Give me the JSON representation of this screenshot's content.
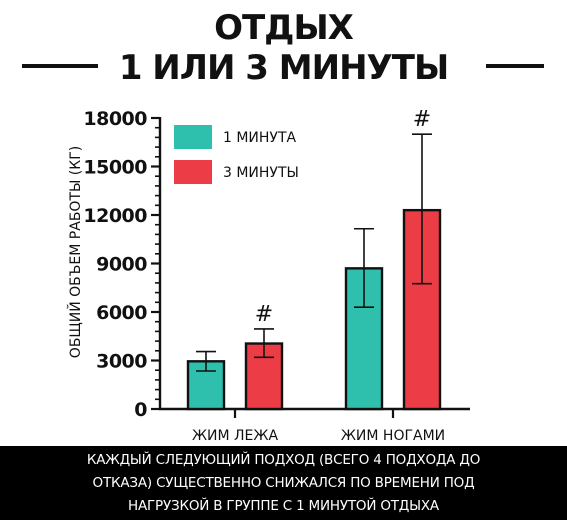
{
  "title_line1": "ОТДЫХ",
  "title_line2": "1 ИЛИ 3 МИНУТЫ",
  "caption_lines": [
    "КАЖДЫЙ СЛЕДУЮЩИЙ ПОДХОД (ВСЕГО 4 ПОДХОДА ДО",
    "ОТКАЗА) СУЩЕСТВЕННО СНИЖАЛСЯ ПО ВРЕМЕНИ ПОД",
    "НАГРУЗКОЙ В ГРУППЕ С 1 МИНУТОЙ ОТДЫХА"
  ],
  "colors": {
    "one_minute": "#2ebfad",
    "three_minutes": "#ec3c46",
    "ink": "#111111"
  },
  "chart_data": {
    "type": "bar",
    "categories": [
      "ЖИМ ЛЕЖА",
      "ЖИМ НОГАМИ"
    ],
    "ylabel": "ОБЩИЙ ОБЪЕМ РАБОТЫ (КГ)",
    "ylim": [
      0,
      18000
    ],
    "yticks": [
      0,
      3000,
      6000,
      9000,
      12000,
      15000,
      18000
    ],
    "ytick_labels": [
      "0",
      "3000",
      "6000",
      "9000",
      "12000",
      "15000",
      "18000"
    ],
    "legend_position": "top-left",
    "series": [
      {
        "name": "1 МИНУТА",
        "values": [
          2950,
          8700
        ],
        "error_low": [
          2350,
          6300
        ],
        "error_high": [
          3550,
          11150
        ],
        "markers": [
          "",
          ""
        ]
      },
      {
        "name": "3 МИНУТЫ",
        "values": [
          4050,
          12300
        ],
        "error_low": [
          3200,
          7750
        ],
        "error_high": [
          4950,
          17000
        ],
        "markers": [
          "#",
          "#"
        ]
      }
    ]
  }
}
